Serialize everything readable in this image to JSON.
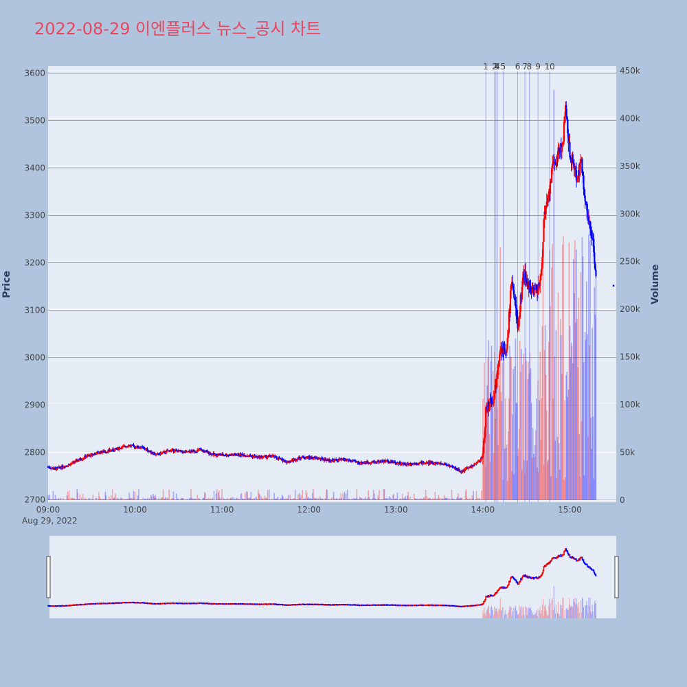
{
  "chart_data": {
    "type": "candlestick",
    "title": "2022-08-29 이엔플러스 뉴스_공시 차트",
    "date_label": "Aug 29, 2022",
    "ylabel_left": "Price",
    "ylabel_right": "Volume",
    "x_ticks": [
      "09:00",
      "10:00",
      "11:00",
      "12:00",
      "13:00",
      "14:00",
      "15:00"
    ],
    "x_range": [
      "09:00",
      "15:32"
    ],
    "price_range": [
      2695,
      3615
    ],
    "price_ticks": [
      2700,
      2800,
      2900,
      3000,
      3100,
      3200,
      3300,
      3400,
      3500,
      3600
    ],
    "volume_range": [
      0,
      455000
    ],
    "volume_ticks": [
      0,
      50000,
      100000,
      150000,
      200000,
      250000,
      300000,
      350000,
      400000,
      450000
    ],
    "volume_tick_labels": [
      "0",
      "50k",
      "100k",
      "150k",
      "200k",
      "250k",
      "300k",
      "350k",
      "400k",
      "450k"
    ],
    "colors": {
      "up": "#ff0000",
      "down": "#0000ff",
      "plot_bg": "#e5ecf6",
      "grid": "#8d97a5",
      "title": "#e8475f"
    },
    "news_markers": [
      {
        "label": "1",
        "time": "14:02"
      },
      {
        "label": "2",
        "time": "14:08"
      },
      {
        "label": "3",
        "time": "14:09"
      },
      {
        "label": "4",
        "time": "14:10"
      },
      {
        "label": "5",
        "time": "14:14"
      },
      {
        "label": "6",
        "time": "14:24"
      },
      {
        "label": "7",
        "time": "14:29"
      },
      {
        "label": "8",
        "time": "14:32"
      },
      {
        "label": "9",
        "time": "14:38"
      },
      {
        "label": "10",
        "time": "14:46"
      }
    ],
    "anchor_points": [
      [
        "09:00",
        2770
      ],
      [
        "09:05",
        2765
      ],
      [
        "09:15",
        2775
      ],
      [
        "09:25",
        2790
      ],
      [
        "09:35",
        2800
      ],
      [
        "09:45",
        2805
      ],
      [
        "09:55",
        2815
      ],
      [
        "10:05",
        2810
      ],
      [
        "10:15",
        2795
      ],
      [
        "10:25",
        2805
      ],
      [
        "10:35",
        2800
      ],
      [
        "10:45",
        2805
      ],
      [
        "10:55",
        2795
      ],
      [
        "11:05",
        2795
      ],
      [
        "11:15",
        2795
      ],
      [
        "11:25",
        2790
      ],
      [
        "11:35",
        2792
      ],
      [
        "11:45",
        2780
      ],
      [
        "11:55",
        2790
      ],
      [
        "12:05",
        2788
      ],
      [
        "12:15",
        2783
      ],
      [
        "12:25",
        2785
      ],
      [
        "12:35",
        2778
      ],
      [
        "12:45",
        2780
      ],
      [
        "12:55",
        2782
      ],
      [
        "13:05",
        2775
      ],
      [
        "13:15",
        2778
      ],
      [
        "13:25",
        2778
      ],
      [
        "13:35",
        2775
      ],
      [
        "13:45",
        2760
      ],
      [
        "13:55",
        2775
      ],
      [
        "14:00",
        2790
      ],
      [
        "14:02",
        2890
      ],
      [
        "14:05",
        2910
      ],
      [
        "14:08",
        2920
      ],
      [
        "14:10",
        2980
      ],
      [
        "14:12",
        3030
      ],
      [
        "14:16",
        3000
      ],
      [
        "14:20",
        3170
      ],
      [
        "14:24",
        3060
      ],
      [
        "14:28",
        3180
      ],
      [
        "14:32",
        3150
      ],
      [
        "14:36",
        3140
      ],
      [
        "14:40",
        3160
      ],
      [
        "14:42",
        3290
      ],
      [
        "14:45",
        3330
      ],
      [
        "14:48",
        3400
      ],
      [
        "14:52",
        3430
      ],
      [
        "14:55",
        3450
      ],
      [
        "14:57",
        3520
      ],
      [
        "15:00",
        3430
      ],
      [
        "15:05",
        3380
      ],
      [
        "15:08",
        3410
      ],
      [
        "15:12",
        3300
      ],
      [
        "15:16",
        3250
      ],
      [
        "15:18",
        3170
      ]
    ]
  }
}
